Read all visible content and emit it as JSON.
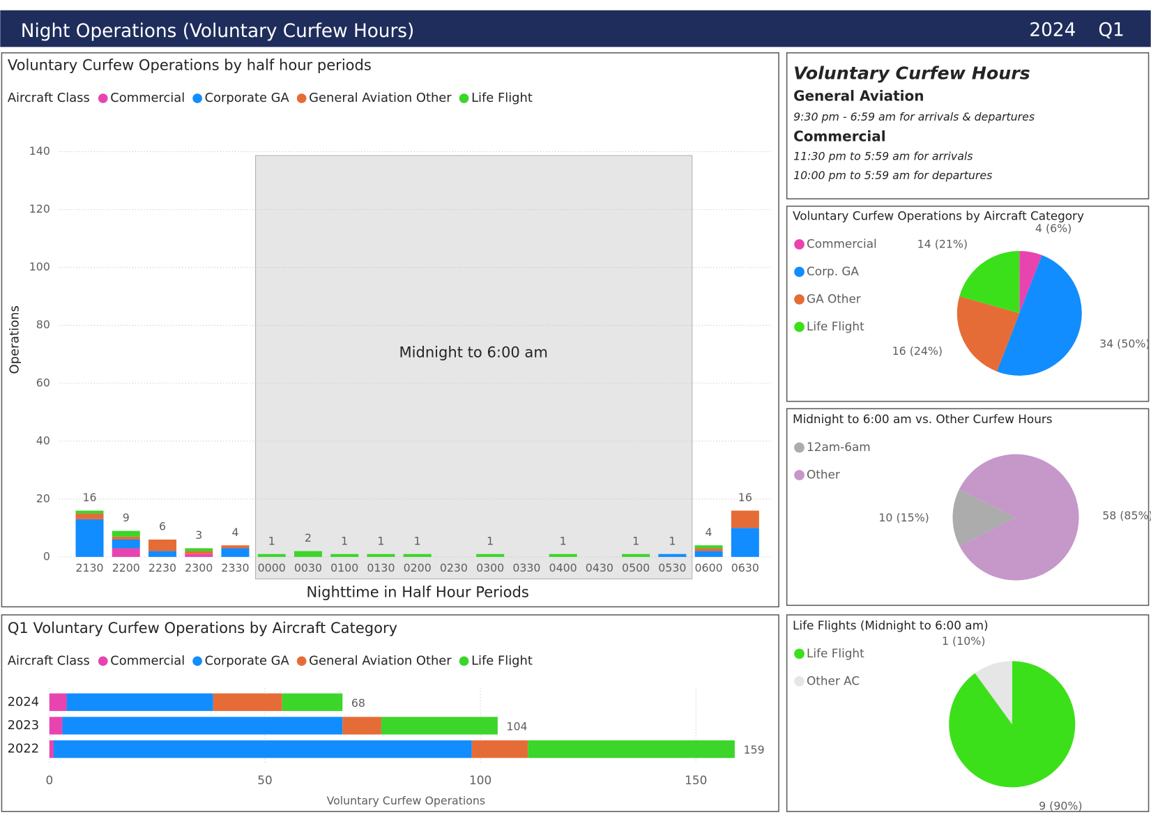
{
  "header": {
    "title": "Night Operations (Voluntary Curfew Hours)",
    "year": "2024",
    "quarter": "Q1"
  },
  "info": {
    "title": "Voluntary Curfew Hours",
    "sections": [
      {
        "heading": "General Aviation",
        "lines": [
          "9:30 pm - 6:59 am for arrivals & departures"
        ]
      },
      {
        "heading": "Commercial",
        "lines": [
          "11:30 pm to 5:59 am for arrivals",
          "10:00 pm to 5:59 am for departures"
        ]
      }
    ]
  },
  "chart_data": [
    {
      "type": "bar",
      "title": "Voluntary Curfew Operations by half hour periods",
      "legend_title": "Aircraft Class",
      "categories": [
        "2130",
        "2200",
        "2230",
        "2300",
        "2330",
        "0000",
        "0030",
        "0100",
        "0130",
        "0200",
        "0230",
        "0300",
        "0330",
        "0400",
        "0430",
        "0500",
        "0530",
        "0600",
        "0630"
      ],
      "series": [
        {
          "name": "Commercial",
          "color": "#e844b0",
          "values": [
            0,
            3,
            0,
            1,
            0,
            0,
            0,
            0,
            0,
            0,
            0,
            0,
            0,
            0,
            0,
            0,
            0,
            0,
            0
          ]
        },
        {
          "name": "Corporate GA",
          "color": "#118dff",
          "values": [
            13,
            3,
            2,
            0,
            3,
            0,
            0,
            0,
            0,
            0,
            0,
            0,
            0,
            0,
            0,
            0,
            1,
            2,
            10
          ]
        },
        {
          "name": "General Aviation Other",
          "color": "#e66c37",
          "values": [
            2,
            1,
            4,
            1,
            1,
            0,
            0,
            0,
            0,
            0,
            0,
            0,
            0,
            0,
            0,
            0,
            0,
            1,
            6
          ]
        },
        {
          "name": "Life Flight",
          "color": "#3cd52a",
          "values": [
            1,
            2,
            0,
            1,
            0,
            1,
            2,
            1,
            1,
            1,
            0,
            1,
            0,
            1,
            0,
            1,
            0,
            1,
            0
          ]
        }
      ],
      "totals": [
        16,
        9,
        6,
        3,
        4,
        1,
        2,
        1,
        1,
        1,
        null,
        1,
        null,
        1,
        null,
        1,
        1,
        4,
        16
      ],
      "ylim": [
        0,
        145
      ],
      "yticks": [
        0,
        20,
        40,
        60,
        80,
        100,
        120,
        140
      ],
      "grid": true,
      "xlabel": "Nighttime in Half Hour Periods",
      "ylabel": "Operations",
      "annotation": "Midnight to 6:00 am"
    },
    {
      "type": "barh",
      "title": "Q1 Voluntary Curfew Operations by Aircraft Category",
      "legend_title": "Aircraft Class",
      "categories": [
        "2024",
        "2023",
        "2022"
      ],
      "series": [
        {
          "name": "Commercial",
          "color": "#e844b0",
          "values": [
            4,
            3,
            1
          ]
        },
        {
          "name": "Corporate GA",
          "color": "#118dff",
          "values": [
            34,
            65,
            97
          ]
        },
        {
          "name": "General Aviation Other",
          "color": "#e66c37",
          "values": [
            16,
            9,
            13
          ]
        },
        {
          "name": "Life Flight",
          "color": "#3cd52a",
          "values": [
            14,
            27,
            48
          ]
        }
      ],
      "totals": [
        68,
        104,
        159
      ],
      "xlim": [
        0,
        167
      ],
      "xticks": [
        0,
        50,
        100,
        150
      ],
      "grid": true,
      "xlabel": "Voluntary Curfew Operations"
    },
    {
      "type": "pie",
      "title": "Voluntary Curfew Operations by Aircraft Category",
      "labels": [
        "Commercial",
        "Corp. GA",
        "GA Other",
        "Life Flight"
      ],
      "colors": [
        "#e844b0",
        "#118dff",
        "#e66c37",
        "#3ce01a"
      ],
      "values": [
        4,
        34,
        16,
        14
      ],
      "value_labels": [
        "4 (6%)",
        "34 (50%)",
        "16 (24%)",
        "14 (21%)"
      ]
    },
    {
      "type": "pie",
      "title": "Midnight to 6:00 am vs. Other Curfew Hours",
      "labels": [
        "12am-6am",
        "Other"
      ],
      "colors": [
        "#acacac",
        "#c598c9"
      ],
      "values": [
        10,
        58
      ],
      "value_labels": [
        "10 (15%)",
        "58 (85%)"
      ]
    },
    {
      "type": "pie",
      "title": "Life Flights (Midnight to 6:00 am)",
      "labels": [
        "Life Flight",
        "Other AC"
      ],
      "colors": [
        "#3ce01a",
        "#e6e6e6"
      ],
      "values": [
        9,
        1
      ],
      "value_labels": [
        "9 (90%)",
        "1 (10%)"
      ]
    }
  ]
}
